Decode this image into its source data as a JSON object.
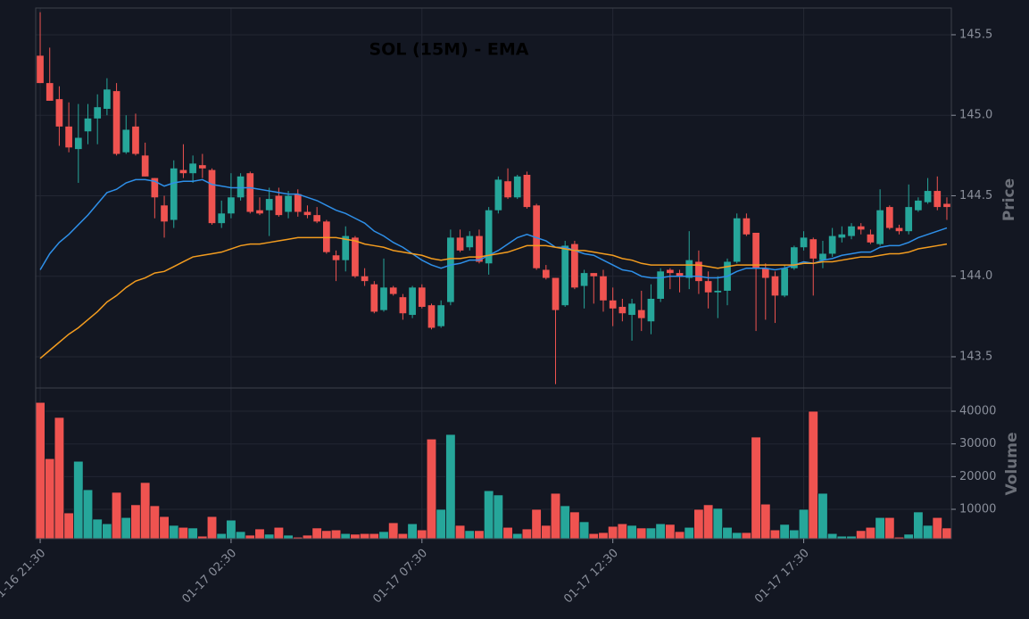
{
  "chart_data": {
    "type": "candlestick",
    "title": "SOL (15M) - EMA",
    "ylabel": "Price",
    "up_color": "#26a69a",
    "down_color": "#ef5350",
    "grid": true,
    "ylim": [
      143.306,
      145.666
    ],
    "yticks": [
      143.5,
      {
        "value": 144,
        "label": "144.0"
      },
      144.5,
      {
        "value": 145,
        "label": "145.0"
      },
      145.5
    ],
    "categories": [
      "01-16 21:30",
      null,
      null,
      null,
      null,
      null,
      null,
      null,
      null,
      null,
      null,
      null,
      null,
      null,
      null,
      null,
      null,
      null,
      null,
      null,
      "01-17 02:30",
      null,
      null,
      null,
      null,
      null,
      null,
      null,
      null,
      null,
      null,
      null,
      null,
      null,
      null,
      null,
      null,
      null,
      null,
      null,
      "01-17 07:30",
      null,
      null,
      null,
      null,
      null,
      null,
      null,
      null,
      null,
      null,
      null,
      null,
      null,
      null,
      null,
      null,
      null,
      null,
      null,
      "01-17 12:30",
      null,
      null,
      null,
      null,
      null,
      null,
      null,
      null,
      null,
      null,
      null,
      null,
      null,
      null,
      null,
      null,
      null,
      null,
      null,
      "01-17 17:30",
      null,
      null,
      null,
      null,
      null,
      null,
      null,
      null,
      null,
      null,
      null,
      null,
      null,
      null,
      null
    ],
    "ohlc": [
      [
        145.37,
        145.64,
        145.2,
        145.2
      ],
      [
        145.2,
        145.42,
        145.09,
        145.09
      ],
      [
        145.1,
        145.18,
        144.81,
        144.93
      ],
      [
        144.93,
        145.08,
        144.77,
        144.8
      ],
      [
        144.79,
        145.07,
        144.58,
        144.86
      ],
      [
        144.9,
        145.07,
        144.82,
        144.98
      ],
      [
        144.98,
        145.13,
        144.82,
        145.05
      ],
      [
        145.04,
        145.23,
        145.0,
        145.16
      ],
      [
        145.15,
        145.2,
        144.75,
        144.76
      ],
      [
        144.77,
        145.0,
        144.76,
        144.91
      ],
      [
        144.93,
        145.01,
        144.75,
        144.76
      ],
      [
        144.75,
        144.83,
        144.62,
        144.62
      ],
      [
        144.61,
        144.61,
        144.36,
        144.49
      ],
      [
        144.44,
        144.5,
        144.24,
        144.34
      ],
      [
        144.35,
        144.72,
        144.3,
        144.67
      ],
      [
        144.66,
        144.82,
        144.61,
        144.64
      ],
      [
        144.64,
        144.75,
        144.58,
        144.7
      ],
      [
        144.69,
        144.76,
        144.61,
        144.67
      ],
      [
        144.66,
        144.67,
        144.32,
        144.33
      ],
      [
        144.33,
        144.47,
        144.3,
        144.39
      ],
      [
        144.39,
        144.64,
        144.36,
        144.49
      ],
      [
        144.49,
        144.64,
        144.47,
        144.62
      ],
      [
        144.64,
        144.65,
        144.39,
        144.4
      ],
      [
        144.41,
        144.49,
        144.38,
        144.39
      ],
      [
        144.41,
        144.55,
        144.25,
        144.48
      ],
      [
        144.5,
        144.55,
        144.37,
        144.38
      ],
      [
        144.4,
        144.53,
        144.36,
        144.5
      ],
      [
        144.51,
        144.54,
        144.37,
        144.4
      ],
      [
        144.4,
        144.44,
        144.36,
        144.38
      ],
      [
        144.38,
        144.43,
        144.33,
        144.34
      ],
      [
        144.34,
        144.35,
        144.14,
        144.15
      ],
      [
        144.13,
        144.16,
        143.97,
        144.1
      ],
      [
        144.1,
        144.31,
        144.03,
        144.25
      ],
      [
        144.24,
        144.25,
        143.99,
        144.0
      ],
      [
        144.0,
        144.05,
        143.94,
        143.97
      ],
      [
        143.95,
        143.97,
        143.77,
        143.78
      ],
      [
        143.79,
        144.11,
        143.78,
        143.93
      ],
      [
        143.93,
        143.94,
        143.88,
        143.89
      ],
      [
        143.87,
        143.89,
        143.73,
        143.77
      ],
      [
        143.76,
        143.94,
        143.74,
        143.93
      ],
      [
        143.93,
        143.95,
        143.8,
        143.81
      ],
      [
        143.82,
        143.83,
        143.67,
        143.68
      ],
      [
        143.69,
        143.85,
        143.68,
        143.82
      ],
      [
        143.84,
        144.29,
        143.82,
        144.24
      ],
      [
        144.24,
        144.29,
        144.15,
        144.16
      ],
      [
        144.18,
        144.28,
        144.16,
        144.25
      ],
      [
        144.25,
        144.29,
        144.08,
        144.09
      ],
      [
        144.08,
        144.43,
        144.01,
        144.41
      ],
      [
        144.41,
        144.62,
        144.39,
        144.6
      ],
      [
        144.59,
        144.67,
        144.48,
        144.49
      ],
      [
        144.49,
        144.63,
        144.48,
        144.62
      ],
      [
        144.63,
        144.65,
        144.42,
        144.43
      ],
      [
        144.44,
        144.45,
        144.04,
        144.05
      ],
      [
        144.04,
        144.07,
        143.98,
        143.99
      ],
      [
        143.99,
        143.99,
        143.33,
        143.79
      ],
      [
        143.82,
        144.22,
        143.81,
        144.19
      ],
      [
        144.2,
        144.22,
        143.92,
        143.93
      ],
      [
        143.94,
        144.04,
        143.8,
        144.02
      ],
      [
        144.02,
        144.02,
        143.83,
        144.0
      ],
      [
        144.0,
        144.04,
        143.78,
        143.85
      ],
      [
        143.85,
        143.93,
        143.69,
        143.8
      ],
      [
        143.81,
        143.86,
        143.72,
        143.77
      ],
      [
        143.76,
        143.86,
        143.6,
        143.83
      ],
      [
        143.79,
        143.91,
        143.66,
        143.74
      ],
      [
        143.72,
        143.95,
        143.64,
        143.86
      ],
      [
        143.86,
        144.05,
        143.84,
        144.03
      ],
      [
        144.04,
        144.05,
        143.92,
        144.02
      ],
      [
        144.02,
        144.04,
        143.9,
        144.0
      ],
      [
        143.99,
        144.28,
        143.92,
        144.1
      ],
      [
        144.09,
        144.16,
        143.89,
        143.97
      ],
      [
        143.97,
        144.03,
        143.8,
        143.9
      ],
      [
        143.9,
        144.0,
        143.74,
        143.91
      ],
      [
        143.91,
        144.11,
        143.82,
        144.09
      ],
      [
        144.09,
        144.39,
        144.08,
        144.36
      ],
      [
        144.36,
        144.39,
        144.25,
        144.26
      ],
      [
        144.27,
        144.27,
        143.66,
        144.05
      ],
      [
        144.05,
        144.08,
        143.73,
        143.99
      ],
      [
        144.0,
        144.03,
        143.71,
        143.88
      ],
      [
        143.88,
        144.07,
        143.87,
        144.05
      ],
      [
        144.05,
        144.19,
        144.04,
        144.18
      ],
      [
        144.18,
        144.28,
        144.16,
        144.24
      ],
      [
        144.23,
        144.24,
        143.88,
        144.11
      ],
      [
        144.1,
        144.22,
        144.05,
        144.14
      ],
      [
        144.14,
        144.3,
        144.12,
        144.25
      ],
      [
        144.24,
        144.31,
        144.21,
        144.26
      ],
      [
        144.25,
        144.33,
        144.23,
        144.31
      ],
      [
        144.31,
        144.33,
        144.26,
        144.29
      ],
      [
        144.26,
        144.29,
        144.2,
        144.21
      ],
      [
        144.2,
        144.54,
        144.19,
        144.41
      ],
      [
        144.43,
        144.44,
        144.29,
        144.3
      ],
      [
        144.3,
        144.32,
        144.26,
        144.28
      ],
      [
        144.28,
        144.57,
        144.26,
        144.43
      ],
      [
        144.41,
        144.49,
        144.4,
        144.47
      ],
      [
        144.46,
        144.61,
        144.45,
        144.53
      ],
      [
        144.53,
        144.62,
        144.41,
        144.43
      ],
      [
        144.45,
        144.49,
        144.35,
        144.43
      ]
    ],
    "ema": [
      {
        "color": "#2e8fe8",
        "values": [
          144.04,
          144.14,
          144.21,
          144.26,
          144.32,
          144.38,
          144.45,
          144.52,
          144.54,
          144.58,
          144.6,
          144.6,
          144.59,
          144.56,
          144.58,
          144.59,
          144.59,
          144.6,
          144.57,
          144.56,
          144.55,
          144.55,
          144.55,
          144.54,
          144.53,
          144.52,
          144.51,
          144.51,
          144.49,
          144.47,
          144.44,
          144.41,
          144.39,
          144.36,
          144.33,
          144.28,
          144.25,
          144.21,
          144.18,
          144.14,
          144.1,
          144.07,
          144.05,
          144.07,
          144.08,
          144.1,
          144.1,
          144.13,
          144.16,
          144.2,
          144.24,
          144.26,
          144.24,
          144.22,
          144.18,
          144.18,
          144.16,
          144.14,
          144.13,
          144.1,
          144.07,
          144.04,
          144.03,
          144.0,
          143.99,
          143.99,
          144.0,
          144.0,
          144.0,
          144.0,
          143.99,
          143.99,
          144.0,
          144.03,
          144.05,
          144.05,
          144.05,
          144.04,
          144.05,
          144.07,
          144.09,
          144.08,
          144.1,
          144.11,
          144.13,
          144.14,
          144.15,
          144.15,
          144.18,
          144.19,
          144.19,
          144.21,
          144.24,
          144.26,
          144.28,
          144.3
        ]
      },
      {
        "color": "#f39c1f",
        "values": [
          143.49,
          143.54,
          143.59,
          143.64,
          143.68,
          143.73,
          143.78,
          143.84,
          143.88,
          143.93,
          143.97,
          143.99,
          144.02,
          144.03,
          144.06,
          144.09,
          144.12,
          144.13,
          144.14,
          144.15,
          144.17,
          144.19,
          144.2,
          144.2,
          144.21,
          144.22,
          144.23,
          144.24,
          144.24,
          144.24,
          144.24,
          144.24,
          144.23,
          144.22,
          144.2,
          144.19,
          144.18,
          144.16,
          144.15,
          144.14,
          144.13,
          144.11,
          144.1,
          144.11,
          144.11,
          144.12,
          144.12,
          144.13,
          144.14,
          144.15,
          144.17,
          144.19,
          144.19,
          144.19,
          144.18,
          144.17,
          144.16,
          144.16,
          144.15,
          144.14,
          144.13,
          144.11,
          144.1,
          144.08,
          144.07,
          144.07,
          144.07,
          144.07,
          144.07,
          144.07,
          144.06,
          144.05,
          144.06,
          144.07,
          144.07,
          144.07,
          144.07,
          144.07,
          144.07,
          144.07,
          144.08,
          144.08,
          144.09,
          144.09,
          144.1,
          144.11,
          144.12,
          144.12,
          144.13,
          144.14,
          144.14,
          144.15,
          144.17,
          144.18,
          144.19,
          144.2
        ]
      }
    ],
    "volume": {
      "ylabel": "Volume",
      "ylim": [
        1000,
        47100
      ],
      "yticks": [
        10000,
        20000,
        30000,
        40000
      ],
      "values": [
        42700,
        25500,
        38100,
        8900,
        24700,
        16000,
        7000,
        5600,
        15200,
        7500,
        11400,
        18200,
        11100,
        7800,
        5100,
        4500,
        4300,
        1800,
        7800,
        2600,
        6700,
        3200,
        2100,
        4000,
        2400,
        4500,
        2100,
        1500,
        2100,
        4300,
        3500,
        3700,
        2600,
        2400,
        2600,
        2600,
        3200,
        5900,
        2600,
        5600,
        3700,
        31500,
        10000,
        32900,
        5100,
        3500,
        3500,
        15700,
        14400,
        4500,
        2600,
        4000,
        10000,
        5100,
        14900,
        11100,
        9200,
        6200,
        2600,
        2900,
        4800,
        5600,
        5100,
        4300,
        4300,
        5600,
        5400,
        3200,
        4500,
        10000,
        11400,
        10300,
        4500,
        2900,
        2900,
        32100,
        11600,
        3700,
        5400,
        3700,
        10000,
        40000,
        14900,
        2600,
        1800,
        1800,
        3500,
        4500,
        7500,
        7500,
        1500,
        2400,
        9200,
        5100,
        7500,
        4300
      ]
    }
  }
}
